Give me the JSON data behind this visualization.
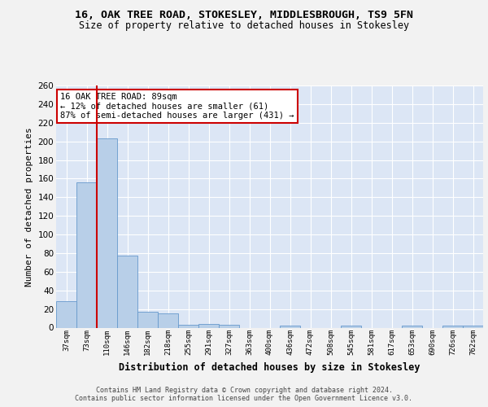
{
  "title": "16, OAK TREE ROAD, STOKESLEY, MIDDLESBROUGH, TS9 5FN",
  "subtitle": "Size of property relative to detached houses in Stokesley",
  "xlabel": "Distribution of detached houses by size in Stokesley",
  "ylabel": "Number of detached properties",
  "categories": [
    "37sqm",
    "73sqm",
    "110sqm",
    "146sqm",
    "182sqm",
    "218sqm",
    "255sqm",
    "291sqm",
    "327sqm",
    "363sqm",
    "400sqm",
    "436sqm",
    "472sqm",
    "508sqm",
    "545sqm",
    "581sqm",
    "617sqm",
    "653sqm",
    "690sqm",
    "726sqm",
    "762sqm"
  ],
  "values": [
    28,
    156,
    203,
    77,
    17,
    15,
    3,
    4,
    3,
    0,
    0,
    2,
    0,
    0,
    2,
    0,
    0,
    2,
    0,
    2,
    2
  ],
  "bar_color": "#b8cfe8",
  "bar_edge_color": "#6699cc",
  "figure_bg": "#f2f2f2",
  "plot_bg": "#dce6f5",
  "grid_color": "#ffffff",
  "vline_color": "#cc0000",
  "vline_x": 1.5,
  "annotation_text": "16 OAK TREE ROAD: 89sqm\n← 12% of detached houses are smaller (61)\n87% of semi-detached houses are larger (431) →",
  "annotation_box_color": "#ffffff",
  "annotation_box_edge": "#cc0000",
  "footer": "Contains HM Land Registry data © Crown copyright and database right 2024.\nContains public sector information licensed under the Open Government Licence v3.0.",
  "ylim": [
    0,
    260
  ],
  "yticks": [
    0,
    20,
    40,
    60,
    80,
    100,
    120,
    140,
    160,
    180,
    200,
    220,
    240,
    260
  ]
}
